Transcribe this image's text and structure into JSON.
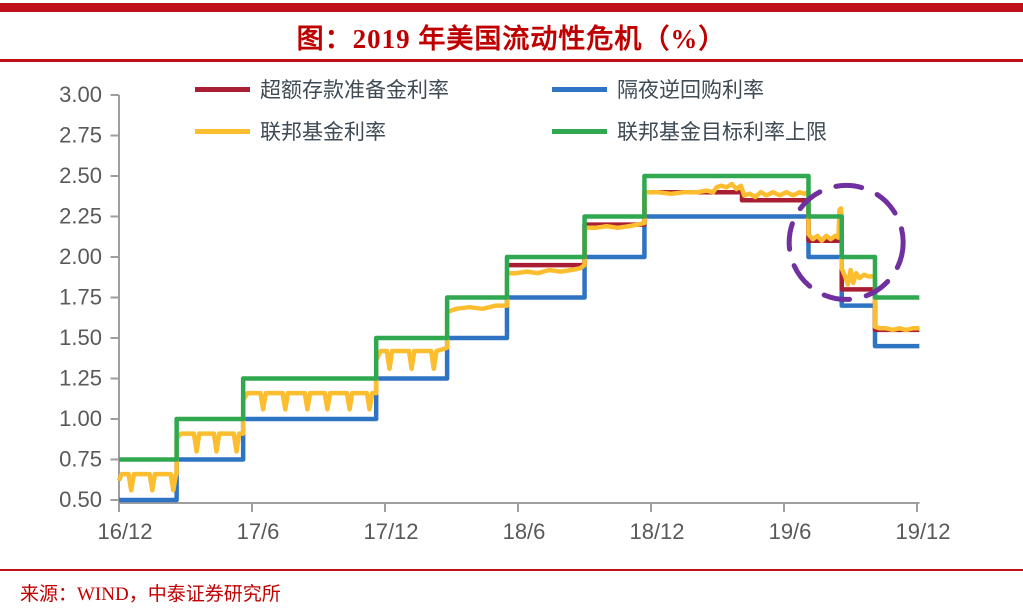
{
  "header": {
    "title": "图：2019 年美国流动性危机（%）"
  },
  "footer": {
    "source": "来源：WIND，中泰证券研究所"
  },
  "colors": {
    "accent_red": "#C00000",
    "axis_line": "#9E9E9E",
    "tick_label": "#595959",
    "legend_text": "#3E4A54",
    "annotation_purple": "#7030A0"
  },
  "chart_data": {
    "type": "line",
    "title": "图：2019 年美国流动性危机（%）",
    "xlabel": "",
    "ylabel": "",
    "ylim": [
      0.5,
      3.0
    ],
    "ytick_step": 0.25,
    "yticks": [
      "3.00",
      "2.75",
      "2.50",
      "2.25",
      "2.00",
      "1.75",
      "1.50",
      "1.25",
      "1.00",
      "0.75",
      "0.50"
    ],
    "xticks": [
      "16/12",
      "17/6",
      "17/12",
      "18/6",
      "18/12",
      "19/6",
      "19/12"
    ],
    "x_unit": "months_since_2016_12",
    "xlim": [
      0,
      36.1
    ],
    "grid": false,
    "legend_position": "top",
    "series": [
      {
        "key": "ioer",
        "name": "超额存款准备金利率",
        "color": "#A91E32",
        "style": "step",
        "points": [
          [
            17.5,
            1.95
          ],
          [
            21.0,
            2.2
          ],
          [
            23.7,
            2.4
          ],
          [
            28.1,
            2.35
          ],
          [
            31.1,
            2.1
          ],
          [
            32.6,
            1.8
          ],
          [
            34.1,
            1.55
          ],
          [
            36.1,
            1.55
          ]
        ]
      },
      {
        "key": "onrrp",
        "name": "隔夜逆回购利率",
        "color": "#2E74C3",
        "style": "step",
        "points": [
          [
            0,
            0.5
          ],
          [
            2.6,
            0.75
          ],
          [
            5.6,
            1.0
          ],
          [
            11.6,
            1.25
          ],
          [
            14.8,
            1.5
          ],
          [
            17.5,
            1.75
          ],
          [
            21.0,
            2.0
          ],
          [
            23.7,
            2.25
          ],
          [
            31.1,
            2.0
          ],
          [
            32.6,
            1.7
          ],
          [
            34.1,
            1.45
          ],
          [
            36.1,
            1.45
          ]
        ]
      },
      {
        "key": "effr",
        "name": "联邦基金利率",
        "color": "#FCBD2F",
        "style": "line",
        "points": [
          [
            0,
            0.62
          ],
          [
            0.12,
            0.66
          ],
          [
            0.43,
            0.66
          ],
          [
            0.55,
            0.56
          ],
          [
            0.67,
            0.66
          ],
          [
            1.38,
            0.66
          ],
          [
            1.5,
            0.56
          ],
          [
            1.62,
            0.66
          ],
          [
            2.33,
            0.66
          ],
          [
            2.45,
            0.56
          ],
          [
            2.57,
            0.66
          ],
          [
            2.6,
            0.66
          ],
          [
            2.6,
            0.88
          ],
          [
            2.8,
            0.91
          ],
          [
            3.38,
            0.91
          ],
          [
            3.5,
            0.8
          ],
          [
            3.62,
            0.91
          ],
          [
            4.28,
            0.91
          ],
          [
            4.4,
            0.8
          ],
          [
            4.52,
            0.91
          ],
          [
            5.18,
            0.91
          ],
          [
            5.3,
            0.8
          ],
          [
            5.42,
            0.91
          ],
          [
            5.6,
            0.91
          ],
          [
            5.6,
            1.12
          ],
          [
            5.8,
            1.16
          ],
          [
            6.38,
            1.16
          ],
          [
            6.5,
            1.06
          ],
          [
            6.62,
            1.16
          ],
          [
            7.38,
            1.16
          ],
          [
            7.5,
            1.06
          ],
          [
            7.62,
            1.16
          ],
          [
            8.38,
            1.16
          ],
          [
            8.5,
            1.06
          ],
          [
            8.62,
            1.16
          ],
          [
            9.28,
            1.16
          ],
          [
            9.4,
            1.06
          ],
          [
            9.52,
            1.16
          ],
          [
            10.28,
            1.16
          ],
          [
            10.4,
            1.06
          ],
          [
            10.52,
            1.16
          ],
          [
            11.18,
            1.16
          ],
          [
            11.3,
            1.06
          ],
          [
            11.42,
            1.16
          ],
          [
            11.6,
            1.16
          ],
          [
            11.6,
            1.36
          ],
          [
            11.8,
            1.42
          ],
          [
            12.08,
            1.42
          ],
          [
            12.2,
            1.31
          ],
          [
            12.32,
            1.42
          ],
          [
            13.08,
            1.42
          ],
          [
            13.2,
            1.31
          ],
          [
            13.32,
            1.42
          ],
          [
            14.08,
            1.42
          ],
          [
            14.2,
            1.31
          ],
          [
            14.32,
            1.42
          ],
          [
            14.6,
            1.43
          ],
          [
            14.8,
            1.44
          ],
          [
            14.8,
            1.66
          ],
          [
            15.2,
            1.68
          ],
          [
            15.8,
            1.69
          ],
          [
            16.4,
            1.68
          ],
          [
            17.0,
            1.7
          ],
          [
            17.5,
            1.7
          ],
          [
            17.5,
            1.9
          ],
          [
            17.9,
            1.9
          ],
          [
            18.4,
            1.91
          ],
          [
            18.9,
            1.9
          ],
          [
            19.4,
            1.92
          ],
          [
            19.9,
            1.91
          ],
          [
            20.4,
            1.92
          ],
          [
            20.8,
            1.93
          ],
          [
            21.0,
            1.95
          ],
          [
            21.0,
            2.18
          ],
          [
            21.5,
            2.18
          ],
          [
            22.0,
            2.19
          ],
          [
            22.5,
            2.18
          ],
          [
            23.0,
            2.19
          ],
          [
            23.4,
            2.2
          ],
          [
            23.7,
            2.21
          ],
          [
            23.7,
            2.4
          ],
          [
            24.3,
            2.4
          ],
          [
            24.9,
            2.39
          ],
          [
            25.5,
            2.4
          ],
          [
            26.1,
            2.4
          ],
          [
            26.5,
            2.41
          ],
          [
            26.8,
            2.4
          ],
          [
            26.95,
            2.43
          ],
          [
            27.15,
            2.44
          ],
          [
            27.4,
            2.43
          ],
          [
            27.65,
            2.45
          ],
          [
            27.85,
            2.42
          ],
          [
            28.05,
            2.44
          ],
          [
            28.2,
            2.38
          ],
          [
            28.45,
            2.39
          ],
          [
            28.7,
            2.37
          ],
          [
            28.95,
            2.4
          ],
          [
            29.2,
            2.38
          ],
          [
            29.5,
            2.4
          ],
          [
            29.8,
            2.38
          ],
          [
            30.1,
            2.4
          ],
          [
            30.4,
            2.38
          ],
          [
            30.7,
            2.4
          ],
          [
            30.9,
            2.39
          ],
          [
            31.1,
            2.4
          ],
          [
            31.1,
            2.14
          ],
          [
            31.3,
            2.11
          ],
          [
            31.5,
            2.13
          ],
          [
            31.7,
            2.1
          ],
          [
            31.9,
            2.13
          ],
          [
            32.1,
            2.11
          ],
          [
            32.3,
            2.13
          ],
          [
            32.45,
            2.12
          ],
          [
            32.5,
            2.29
          ],
          [
            32.56,
            2.3
          ],
          [
            32.6,
            2.24
          ],
          [
            32.6,
            1.93
          ],
          [
            32.75,
            1.88
          ],
          [
            32.88,
            1.83
          ],
          [
            33.0,
            1.92
          ],
          [
            33.12,
            1.84
          ],
          [
            33.25,
            1.9
          ],
          [
            33.4,
            1.87
          ],
          [
            33.6,
            1.89
          ],
          [
            33.8,
            1.88
          ],
          [
            34.0,
            1.88
          ],
          [
            34.1,
            1.87
          ],
          [
            34.1,
            1.57
          ],
          [
            34.3,
            1.56
          ],
          [
            34.6,
            1.56
          ],
          [
            34.9,
            1.55
          ],
          [
            35.2,
            1.56
          ],
          [
            35.5,
            1.55
          ],
          [
            35.8,
            1.56
          ],
          [
            36.1,
            1.56
          ]
        ]
      },
      {
        "key": "target-upper",
        "name": "联邦基金目标利率上限",
        "color": "#2FA84F",
        "style": "step",
        "points": [
          [
            0,
            0.75
          ],
          [
            2.6,
            1.0
          ],
          [
            5.6,
            1.25
          ],
          [
            11.6,
            1.5
          ],
          [
            14.8,
            1.75
          ],
          [
            17.5,
            2.0
          ],
          [
            21.0,
            2.25
          ],
          [
            23.7,
            2.5
          ],
          [
            31.1,
            2.25
          ],
          [
            32.6,
            2.0
          ],
          [
            34.1,
            1.75
          ],
          [
            36.1,
            1.75
          ]
        ]
      }
    ],
    "annotation": {
      "type": "dashed-circle",
      "color": "#7030A0",
      "center_month": 32.8,
      "center_value": 2.09,
      "radius_px": 57
    }
  }
}
